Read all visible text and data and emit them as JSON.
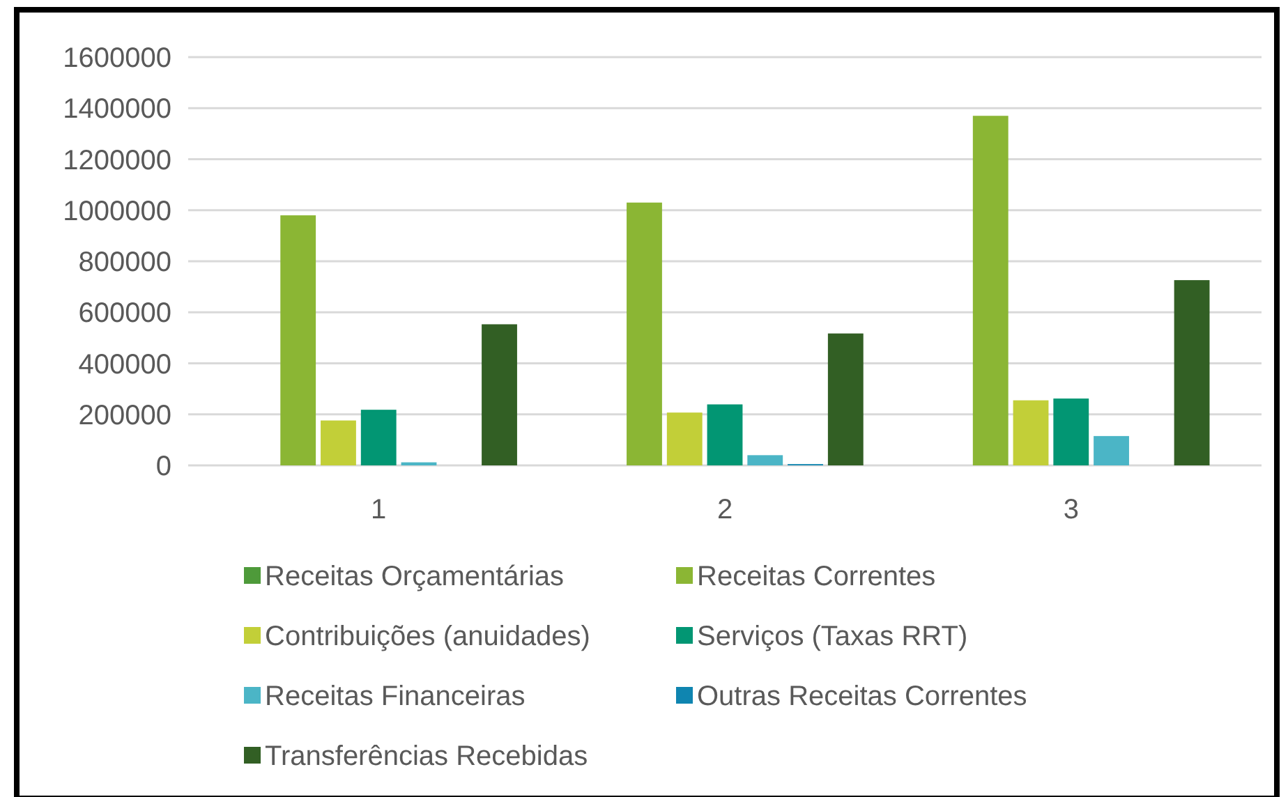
{
  "chart_data": {
    "type": "bar",
    "categories": [
      "1",
      "2",
      "3"
    ],
    "series": [
      {
        "name": "Receitas Orçamentárias",
        "color": "#4e9a3a",
        "values": [
          0,
          0,
          0
        ]
      },
      {
        "name": "Receitas Correntes",
        "color": "#8bb634",
        "values": [
          980000,
          1030000,
          1370000
        ]
      },
      {
        "name": "Contribuições (anuidades)",
        "color": "#c2cf38",
        "values": [
          176000,
          207000,
          255000
        ]
      },
      {
        "name": "Serviços (Taxas RRT)",
        "color": "#029673",
        "values": [
          218000,
          239000,
          262000
        ]
      },
      {
        "name": "Receitas Financeiras",
        "color": "#4bb5c6",
        "values": [
          12000,
          40000,
          115000
        ]
      },
      {
        "name": "Outras Receitas Correntes",
        "color": "#0f85b0",
        "values": [
          0,
          5000,
          0
        ]
      },
      {
        "name": "Transferências Recebidas",
        "color": "#325f24",
        "values": [
          553000,
          517000,
          726000
        ]
      }
    ],
    "ylim": [
      0,
      1600000
    ],
    "yticks": [
      0,
      200000,
      400000,
      600000,
      800000,
      1000000,
      1200000,
      1400000,
      1600000
    ],
    "grid": "y",
    "legend": "bottom"
  }
}
